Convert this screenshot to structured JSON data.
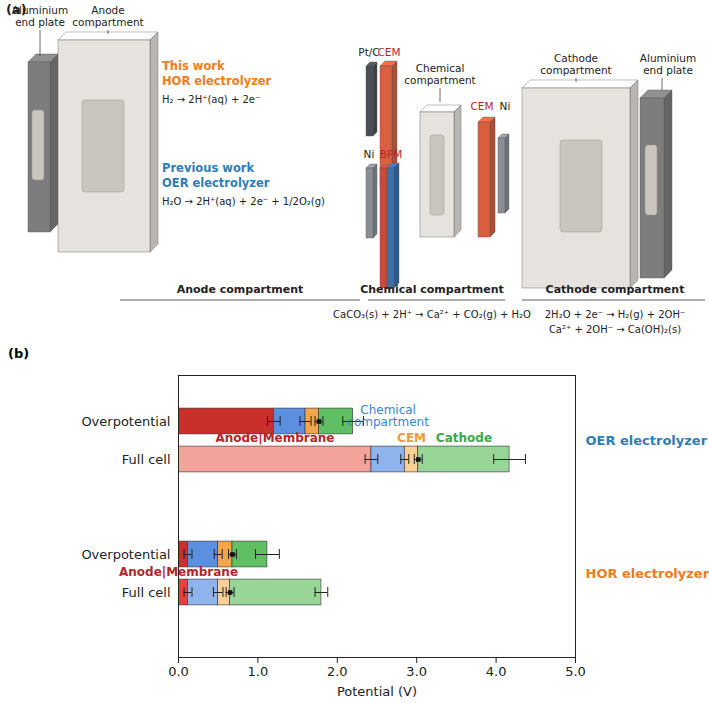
{
  "diagram": {
    "label": "(a)",
    "left_end_plate": "Aluminium end plate",
    "anode_compartment": "Anode compartment",
    "this_work": {
      "tag": "This work",
      "name": "HOR electrolyzer",
      "color": "#ef7d1a",
      "reaction": "H₂ → 2H⁺(aq) + 2e⁻",
      "electrode": "Pt/C",
      "membrane": "CEM"
    },
    "previous_work": {
      "tag": "Previous work",
      "name": "OER electrolyzer",
      "color": "#2f7db6",
      "reaction": "H₂O → 2H⁺(aq) + 2e⁻ + 1/2O₂(g)",
      "electrode": "Ni",
      "membrane": "BPM"
    },
    "chemical_compartment": "Chemical compartment",
    "cathode_membrane": "CEM",
    "cathode_electrode": "Ni",
    "cathode_compartment": "Cathode compartment",
    "right_end_plate": "Aluminium end plate",
    "sections": [
      {
        "title": "Anode compartment",
        "reactions": []
      },
      {
        "title": "Chemical compartment",
        "reactions": [
          "CaCO₃(s) + 2H⁺ → Ca²⁺ + CO₂(g) + H₂O"
        ]
      },
      {
        "title": "Cathode compartment",
        "reactions": [
          "2H₂O + 2e⁻ → H₂(g) + 2OH⁻",
          "Ca²⁺ + 2OH⁻ → Ca(OH)₂(s)"
        ]
      }
    ]
  },
  "chart_data": {
    "type": "bar",
    "orientation": "horizontal",
    "stacked": true,
    "label": "(b)",
    "xlabel": "Potential (V)",
    "xlim": [
      0,
      5
    ],
    "xticks": [
      0,
      1,
      2,
      3,
      4,
      5
    ],
    "segments": [
      {
        "name": "Anode|Membrane",
        "color": "#b3262a"
      },
      {
        "name": "Chemical compartment",
        "color": "#3f7fd6"
      },
      {
        "name": "CEM",
        "color": "#ef9a3a",
        "marker": "square"
      },
      {
        "name": "Cathode",
        "color": "#3aa84a"
      }
    ],
    "groups": [
      {
        "name": "HOR electrolyzer",
        "color": "#ef7d1a",
        "categories": [
          "Full cell",
          "Overpotential"
        ],
        "series": [
          {
            "values": [
              0.12,
              0.12
            ],
            "errors": [
              0.05,
              0.05
            ],
            "colors": [
              "#e8403c",
              "#c9302c"
            ]
          },
          {
            "values": [
              0.38,
              0.38
            ],
            "errors": [
              0.06,
              0.05
            ],
            "colors": [
              "#8fb3ec",
              "#5b8fe0"
            ]
          },
          {
            "values": [
              0.15,
              0.18
            ],
            "errors": [
              0.05,
              0.05
            ],
            "colors": [
              "#f9cf96",
              "#f2a54b"
            ]
          },
          {
            "values": [
              1.15,
              0.44
            ],
            "errors": [
              0.08,
              0.15
            ],
            "colors": [
              "#98d698",
              "#5fbf62"
            ]
          }
        ]
      },
      {
        "name": "OER electrolyzer",
        "color": "#2f7db6",
        "categories": [
          "Full cell",
          "Overpotential"
        ],
        "series": [
          {
            "values": [
              2.43,
              1.2
            ],
            "errors": [
              0.08,
              0.08
            ],
            "colors": [
              "#f4a39a",
              "#c9302c"
            ]
          },
          {
            "values": [
              0.42,
              0.4
            ],
            "errors": [
              0.05,
              0.07
            ],
            "colors": [
              "#8fb3ec",
              "#5b8fe0"
            ]
          },
          {
            "values": [
              0.17,
              0.17
            ],
            "errors": [
              0.05,
              0.05
            ],
            "colors": [
              "#f9cf96",
              "#f2a54b"
            ]
          },
          {
            "values": [
              1.15,
              0.43
            ],
            "errors": [
              0.2,
              0.13
            ],
            "colors": [
              "#98d698",
              "#5fbf62"
            ]
          }
        ]
      }
    ]
  }
}
